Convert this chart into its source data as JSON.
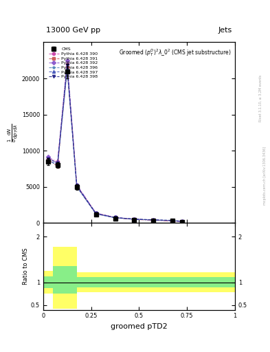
{
  "title_top": "13000 GeV pp",
  "title_right": "Jets",
  "plot_title": "Groomed $(p_T^D)^2\\lambda\\_0^2$ (CMS jet substructure)",
  "ylabel_main": "mathrm dN / mathrm d p_T mathrm d lambda",
  "ylabel_ratio": "Ratio to CMS",
  "xlabel": "groomed pTD2",
  "right_label1": "Rivet 3.1.10, ≥ 3.2M events",
  "right_label2": "mcplots.cern.ch [arXiv:1306.3436]",
  "x_data": [
    0.025,
    0.075,
    0.125,
    0.175,
    0.275,
    0.375,
    0.475,
    0.575,
    0.675,
    0.725
  ],
  "cms_y": [
    8500,
    8000,
    21000,
    5000,
    1200,
    650,
    450,
    350,
    280,
    170
  ],
  "cms_yerr": [
    500,
    400,
    1000,
    400,
    100,
    60,
    40,
    30,
    25,
    20
  ],
  "pythia_colors": [
    "#cc44aa",
    "#cc5555",
    "#8855cc",
    "#5588bb",
    "#4455bb",
    "#222288"
  ],
  "pythia_labels": [
    "Pythia 6.428 390",
    "Pythia 6.428 391",
    "Pythia 6.428 392",
    "Pythia 6.428 396",
    "Pythia 6.428 397",
    "Pythia 6.428 398"
  ],
  "pythia_markers": [
    "o",
    "s",
    "D",
    "*",
    "^",
    "v"
  ],
  "pythia_linestyles": [
    "-.",
    "-.",
    "-.",
    "--",
    "--",
    "--"
  ],
  "p390_y": [
    9000,
    8500,
    22000,
    5200,
    1350,
    750,
    520,
    400,
    300,
    180
  ],
  "p391_y": [
    8800,
    7800,
    21500,
    5100,
    1300,
    720,
    490,
    380,
    285,
    172
  ],
  "p392_y": [
    9200,
    8200,
    22500,
    5300,
    1380,
    770,
    530,
    410,
    305,
    185
  ],
  "p396_y": [
    8600,
    8100,
    21200,
    5000,
    1250,
    720,
    510,
    410,
    330,
    200
  ],
  "p397_y": [
    8700,
    8000,
    21300,
    5050,
    1270,
    730,
    520,
    420,
    340,
    210
  ],
  "p398_y": [
    8900,
    8300,
    21800,
    5150,
    1320,
    760,
    540,
    440,
    360,
    230
  ],
  "ylim_main": [
    0,
    25000
  ],
  "ylim_ratio": [
    0.4,
    2.3
  ],
  "xlim": [
    0.0,
    1.0
  ],
  "yticks_main": [
    0,
    5000,
    10000,
    15000,
    20000
  ],
  "ytick_labels_main": [
    "0",
    "5000",
    "10000",
    "15000",
    "20000"
  ],
  "yticks_ratio": [
    0.5,
    1.0,
    2.0
  ],
  "ytick_labels_ratio": [
    "0.5",
    "1",
    "2"
  ]
}
